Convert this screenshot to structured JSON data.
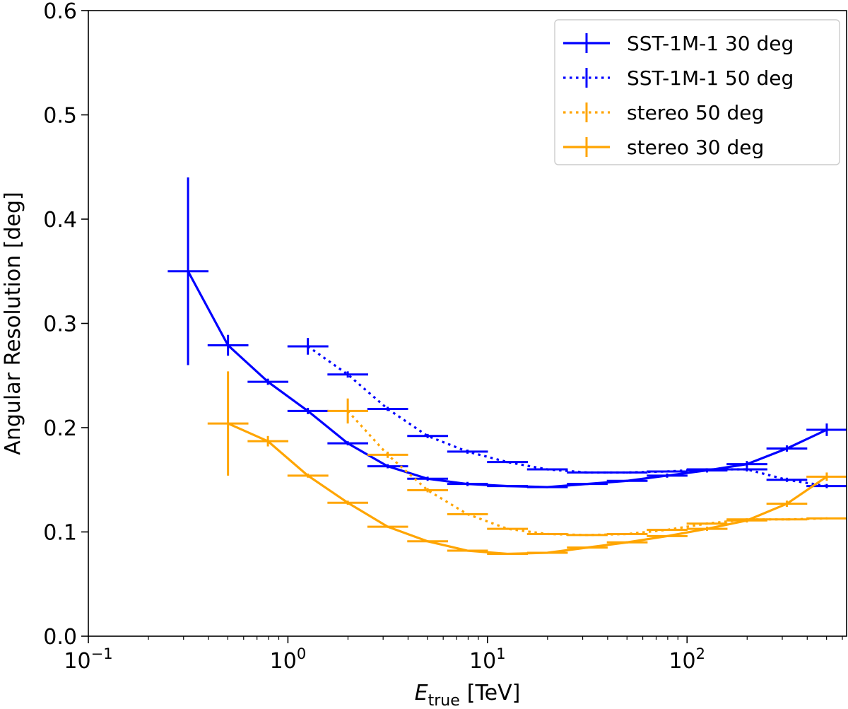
{
  "chart_data": {
    "type": "line",
    "title": "",
    "xlabel": "E_true [TeV]",
    "xlabel_main": "E",
    "xlabel_sub": "true",
    "xlabel_unit": "[TeV]",
    "ylabel": "Angular Resolution [deg]",
    "xscale": "log",
    "xlim": [
      0.1,
      630
    ],
    "ylim": [
      0.0,
      0.6
    ],
    "grid": false,
    "legend_position": "top-right",
    "x_ticks": [
      {
        "base": "10",
        "exp": "−1",
        "value": 0.1
      },
      {
        "base": "10",
        "exp": "0",
        "value": 1
      },
      {
        "base": "10",
        "exp": "1",
        "value": 10
      },
      {
        "base": "10",
        "exp": "2",
        "value": 100
      }
    ],
    "y_ticks": [
      "0.0",
      "0.1",
      "0.2",
      "0.3",
      "0.4",
      "0.5",
      "0.6"
    ],
    "series": [
      {
        "name": "SST-1M-1 30 deg",
        "color": "#0000ff",
        "linestyle": "solid",
        "x": [
          0.316,
          0.501,
          0.794,
          1.259,
          1.995,
          3.162,
          5.012,
          7.943,
          12.59,
          19.95,
          31.62,
          50.12,
          79.43,
          125.9,
          199.5,
          316.2,
          501.2
        ],
        "y": [
          0.35,
          0.279,
          0.244,
          0.216,
          0.185,
          0.163,
          0.151,
          0.146,
          0.144,
          0.143,
          0.146,
          0.149,
          0.154,
          0.159,
          0.165,
          0.18,
          0.198
        ],
        "xerr": [
          [
            0.066,
            0.084
          ],
          [
            0.105,
            0.133
          ],
          [
            0.166,
            0.211
          ],
          [
            0.264,
            0.336
          ],
          [
            0.417,
            0.529
          ],
          [
            0.661,
            0.839
          ],
          [
            1.05,
            1.33
          ],
          [
            1.66,
            2.11
          ],
          [
            2.64,
            3.35
          ],
          [
            4.17,
            5.3
          ],
          [
            6.62,
            8.39
          ],
          [
            10.5,
            13.3
          ],
          [
            16.6,
            21.1
          ],
          [
            26.4,
            33.5
          ],
          [
            41.7,
            53.0
          ],
          [
            66.2,
            83.9
          ],
          [
            104.8,
            130
          ]
        ],
        "yerr": [
          0.09,
          0.01,
          0.003,
          0.003,
          0.002,
          0.002,
          0.002,
          0.002,
          0.001,
          0.001,
          0.001,
          0.001,
          0.002,
          0.002,
          0.003,
          0.003,
          0.006
        ]
      },
      {
        "name": "SST-1M-1 50 deg",
        "color": "#0000ff",
        "linestyle": "dotted",
        "x": [
          1.259,
          1.995,
          3.162,
          5.012,
          7.943,
          12.59,
          19.95,
          31.62,
          50.12,
          79.43,
          125.9,
          199.5,
          316.2,
          501.2
        ],
        "y": [
          0.278,
          0.251,
          0.218,
          0.192,
          0.177,
          0.167,
          0.16,
          0.157,
          0.157,
          0.158,
          0.16,
          0.16,
          0.15,
          0.144
        ],
        "xerr": [
          [
            0.264,
            0.336
          ],
          [
            0.417,
            0.529
          ],
          [
            0.661,
            0.839
          ],
          [
            1.05,
            1.33
          ],
          [
            1.66,
            2.11
          ],
          [
            2.64,
            3.35
          ],
          [
            4.17,
            5.3
          ],
          [
            6.62,
            8.39
          ],
          [
            10.5,
            13.3
          ],
          [
            16.6,
            21.1
          ],
          [
            26.4,
            33.5
          ],
          [
            41.7,
            53.0
          ],
          [
            66.2,
            83.9
          ],
          [
            104.8,
            130
          ]
        ],
        "yerr": [
          0.008,
          0.003,
          0.002,
          0.002,
          0.002,
          0.001,
          0.001,
          0.001,
          0.001,
          0.001,
          0.001,
          0.002,
          0.002,
          0.002
        ]
      },
      {
        "name": "stereo 50 deg",
        "color": "#ffa500",
        "linestyle": "dotted",
        "x": [
          1.995,
          3.162,
          5.012,
          7.943,
          12.59,
          19.95,
          31.62,
          50.12,
          79.43,
          125.9,
          199.5,
          316.2,
          501.2
        ],
        "y": [
          0.216,
          0.174,
          0.14,
          0.117,
          0.103,
          0.098,
          0.097,
          0.098,
          0.102,
          0.108,
          0.112,
          0.112,
          0.113
        ],
        "xerr": [
          [
            0.417,
            0.529
          ],
          [
            0.661,
            0.839
          ],
          [
            1.05,
            1.33
          ],
          [
            1.66,
            2.11
          ],
          [
            2.64,
            3.35
          ],
          [
            4.17,
            5.3
          ],
          [
            6.62,
            8.39
          ],
          [
            10.5,
            13.3
          ],
          [
            16.6,
            21.1
          ],
          [
            26.4,
            33.5
          ],
          [
            41.7,
            53.0
          ],
          [
            66.2,
            83.9
          ],
          [
            104.8,
            130
          ]
        ],
        "yerr": [
          0.012,
          0.003,
          0.002,
          0.001,
          0.001,
          0.001,
          0.001,
          0.001,
          0.001,
          0.001,
          0.001,
          0.001,
          0.001
        ]
      },
      {
        "name": "stereo 30 deg",
        "color": "#ffa500",
        "linestyle": "solid",
        "x": [
          0.501,
          0.794,
          1.259,
          1.995,
          3.162,
          5.012,
          7.943,
          12.59,
          19.95,
          31.62,
          50.12,
          79.43,
          125.9,
          199.5,
          316.2,
          501.2
        ],
        "y": [
          0.204,
          0.187,
          0.154,
          0.128,
          0.105,
          0.091,
          0.082,
          0.079,
          0.08,
          0.085,
          0.09,
          0.096,
          0.103,
          0.111,
          0.127,
          0.153
        ],
        "xerr": [
          [
            0.105,
            0.133
          ],
          [
            0.166,
            0.211
          ],
          [
            0.264,
            0.336
          ],
          [
            0.417,
            0.529
          ],
          [
            0.661,
            0.839
          ],
          [
            1.05,
            1.33
          ],
          [
            1.66,
            2.11
          ],
          [
            2.64,
            3.35
          ],
          [
            4.17,
            5.3
          ],
          [
            6.62,
            8.39
          ],
          [
            10.5,
            13.3
          ],
          [
            16.6,
            21.1
          ],
          [
            26.4,
            33.5
          ],
          [
            41.7,
            53.0
          ],
          [
            66.2,
            83.9
          ],
          [
            104.8,
            130
          ]
        ],
        "yerr": [
          0.05,
          0.005,
          0.002,
          0.002,
          0.001,
          0.001,
          0.001,
          0.001,
          0.001,
          0.001,
          0.001,
          0.001,
          0.002,
          0.002,
          0.003,
          0.004
        ]
      }
    ]
  }
}
